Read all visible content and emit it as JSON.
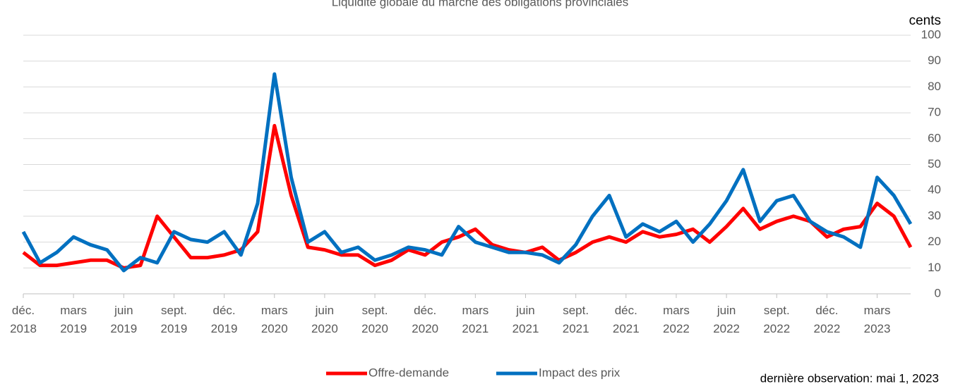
{
  "chart_data": {
    "type": "line",
    "title": "Liquidité globale du marché des obligations provinciales",
    "y_axis_label": "cents",
    "note": "dernière observation: mai 1, 2023",
    "x": [
      "2018-12",
      "2019-01",
      "2019-02",
      "2019-03",
      "2019-04",
      "2019-05",
      "2019-06",
      "2019-07",
      "2019-08",
      "2019-09",
      "2019-10",
      "2019-11",
      "2019-12",
      "2020-01",
      "2020-02",
      "2020-03",
      "2020-04",
      "2020-05",
      "2020-06",
      "2020-07",
      "2020-08",
      "2020-09",
      "2020-10",
      "2020-11",
      "2020-12",
      "2021-01",
      "2021-02",
      "2021-03",
      "2021-04",
      "2021-05",
      "2021-06",
      "2021-07",
      "2021-08",
      "2021-09",
      "2021-10",
      "2021-11",
      "2021-12",
      "2022-01",
      "2022-02",
      "2022-03",
      "2022-04",
      "2022-05",
      "2022-06",
      "2022-07",
      "2022-08",
      "2022-09",
      "2022-10",
      "2022-11",
      "2022-12",
      "2023-01",
      "2023-02",
      "2023-03",
      "2023-04",
      "2023-05"
    ],
    "xticks": [
      {
        "value": "2018-12",
        "label": "déc.\n2018"
      },
      {
        "value": "2019-03",
        "label": "mars\n2019"
      },
      {
        "value": "2019-06",
        "label": "juin\n2019"
      },
      {
        "value": "2019-09",
        "label": "sept.\n2019"
      },
      {
        "value": "2019-12",
        "label": "déc.\n2019"
      },
      {
        "value": "2020-03",
        "label": "mars\n2020"
      },
      {
        "value": "2020-06",
        "label": "juin\n2020"
      },
      {
        "value": "2020-09",
        "label": "sept.\n2020"
      },
      {
        "value": "2020-12",
        "label": "déc.\n2020"
      },
      {
        "value": "2021-03",
        "label": "mars\n2021"
      },
      {
        "value": "2021-06",
        "label": "juin\n2021"
      },
      {
        "value": "2021-09",
        "label": "sept.\n2021"
      },
      {
        "value": "2021-12",
        "label": "déc.\n2021"
      },
      {
        "value": "2022-03",
        "label": "mars\n2022"
      },
      {
        "value": "2022-06",
        "label": "juin\n2022"
      },
      {
        "value": "2022-09",
        "label": "sept.\n2022"
      },
      {
        "value": "2022-12",
        "label": "déc.\n2022"
      },
      {
        "value": "2023-03",
        "label": "mars\n2023"
      }
    ],
    "ylim": [
      0,
      100
    ],
    "yticks": [
      0,
      10,
      20,
      30,
      40,
      50,
      60,
      70,
      80,
      90,
      100
    ],
    "grid": true,
    "legend": "bottom",
    "series": [
      {
        "name": "Offre-demande",
        "color": "#ff0000",
        "values": [
          16,
          11,
          11,
          12,
          13,
          13,
          10,
          11,
          30,
          22,
          14,
          14,
          15,
          17,
          24,
          65,
          38,
          18,
          17,
          15,
          15,
          11,
          13,
          17,
          15,
          20,
          22,
          25,
          19,
          17,
          16,
          18,
          13,
          16,
          20,
          22,
          20,
          24,
          22,
          23,
          25,
          20,
          26,
          33,
          25,
          28,
          30,
          28,
          22,
          25,
          26,
          35,
          30,
          18
        ]
      },
      {
        "name": "Impact des prix",
        "color": "#0070c0",
        "values": [
          24,
          12,
          16,
          22,
          19,
          17,
          9,
          14,
          12,
          24,
          21,
          20,
          24,
          15,
          35,
          85,
          45,
          20,
          24,
          16,
          18,
          13,
          15,
          18,
          17,
          15,
          26,
          20,
          18,
          16,
          16,
          15,
          12,
          19,
          30,
          38,
          22,
          27,
          24,
          28,
          20,
          27,
          36,
          48,
          28,
          36,
          38,
          28,
          24,
          22,
          18,
          45,
          38,
          27
        ]
      }
    ]
  }
}
